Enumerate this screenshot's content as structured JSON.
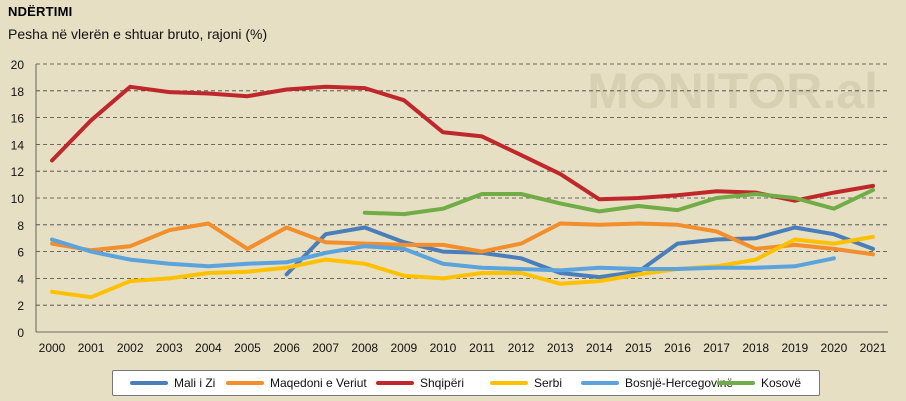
{
  "header": {
    "title": "NDËRTIMI",
    "subtitle": "Pesha në vlerën e shtuar bruto, rajoni (%)",
    "watermark": "MONITOR.al"
  },
  "chart_data": {
    "type": "line",
    "title": "NDËRTIMI",
    "subtitle": "Pesha në vlerën e shtuar bruto, rajoni (%)",
    "xlabel": "",
    "ylabel": "",
    "ylim": [
      0,
      20
    ],
    "yticks": [
      0,
      2,
      4,
      6,
      8,
      10,
      12,
      14,
      16,
      18,
      20
    ],
    "grid": "horizontal-dashed",
    "legend_position": "bottom",
    "categories": [
      "2000",
      "2001",
      "2002",
      "2003",
      "2004",
      "2005",
      "2006",
      "2007",
      "2008",
      "2009",
      "2010",
      "2011",
      "2012",
      "2013",
      "2014",
      "2015",
      "2016",
      "2017",
      "2018",
      "2019",
      "2020",
      "2021"
    ],
    "series": [
      {
        "name": "Mali i Zi",
        "color": "#4a7ebb",
        "values": [
          null,
          null,
          null,
          null,
          null,
          null,
          4.3,
          7.3,
          7.8,
          6.7,
          6.0,
          5.9,
          5.5,
          4.4,
          4.1,
          4.5,
          6.6,
          6.9,
          7.0,
          7.8,
          7.3,
          6.2
        ]
      },
      {
        "name": "Maqedoni e Veriut",
        "color": "#f28e2b",
        "values": [
          6.6,
          6.1,
          6.4,
          7.6,
          8.1,
          6.2,
          7.8,
          6.7,
          6.6,
          6.5,
          6.5,
          6.0,
          6.6,
          8.1,
          8.0,
          8.1,
          8.0,
          7.5,
          6.2,
          6.5,
          6.2,
          5.8
        ]
      },
      {
        "name": "Shqipëri",
        "color": "#c0272d",
        "values": [
          12.8,
          15.8,
          18.3,
          17.9,
          17.8,
          17.6,
          18.1,
          18.3,
          18.2,
          17.3,
          14.9,
          14.6,
          13.2,
          11.8,
          9.9,
          10.0,
          10.2,
          10.5,
          10.4,
          9.8,
          10.4,
          10.9
        ]
      },
      {
        "name": "Serbi",
        "color": "#ffc000",
        "values": [
          3.0,
          2.6,
          3.8,
          4.0,
          4.4,
          4.5,
          4.8,
          5.4,
          5.1,
          4.2,
          4.0,
          4.4,
          4.4,
          3.6,
          3.8,
          4.3,
          4.7,
          4.9,
          5.4,
          6.9,
          6.6,
          7.1
        ]
      },
      {
        "name": "Bosnjë-Hercegovinë",
        "color": "#5ba3dc",
        "values": [
          6.9,
          6.0,
          5.4,
          5.1,
          4.9,
          5.1,
          5.2,
          5.9,
          6.4,
          6.2,
          5.1,
          4.8,
          4.7,
          4.6,
          4.8,
          4.7,
          4.7,
          4.8,
          4.8,
          4.9,
          5.5,
          null
        ]
      },
      {
        "name": "Kosovë",
        "color": "#70ad47",
        "values": [
          null,
          null,
          null,
          null,
          null,
          null,
          null,
          null,
          8.9,
          8.8,
          9.2,
          10.3,
          10.3,
          9.6,
          9.0,
          9.4,
          9.1,
          10.0,
          10.3,
          10.0,
          9.2,
          10.6
        ]
      }
    ]
  }
}
